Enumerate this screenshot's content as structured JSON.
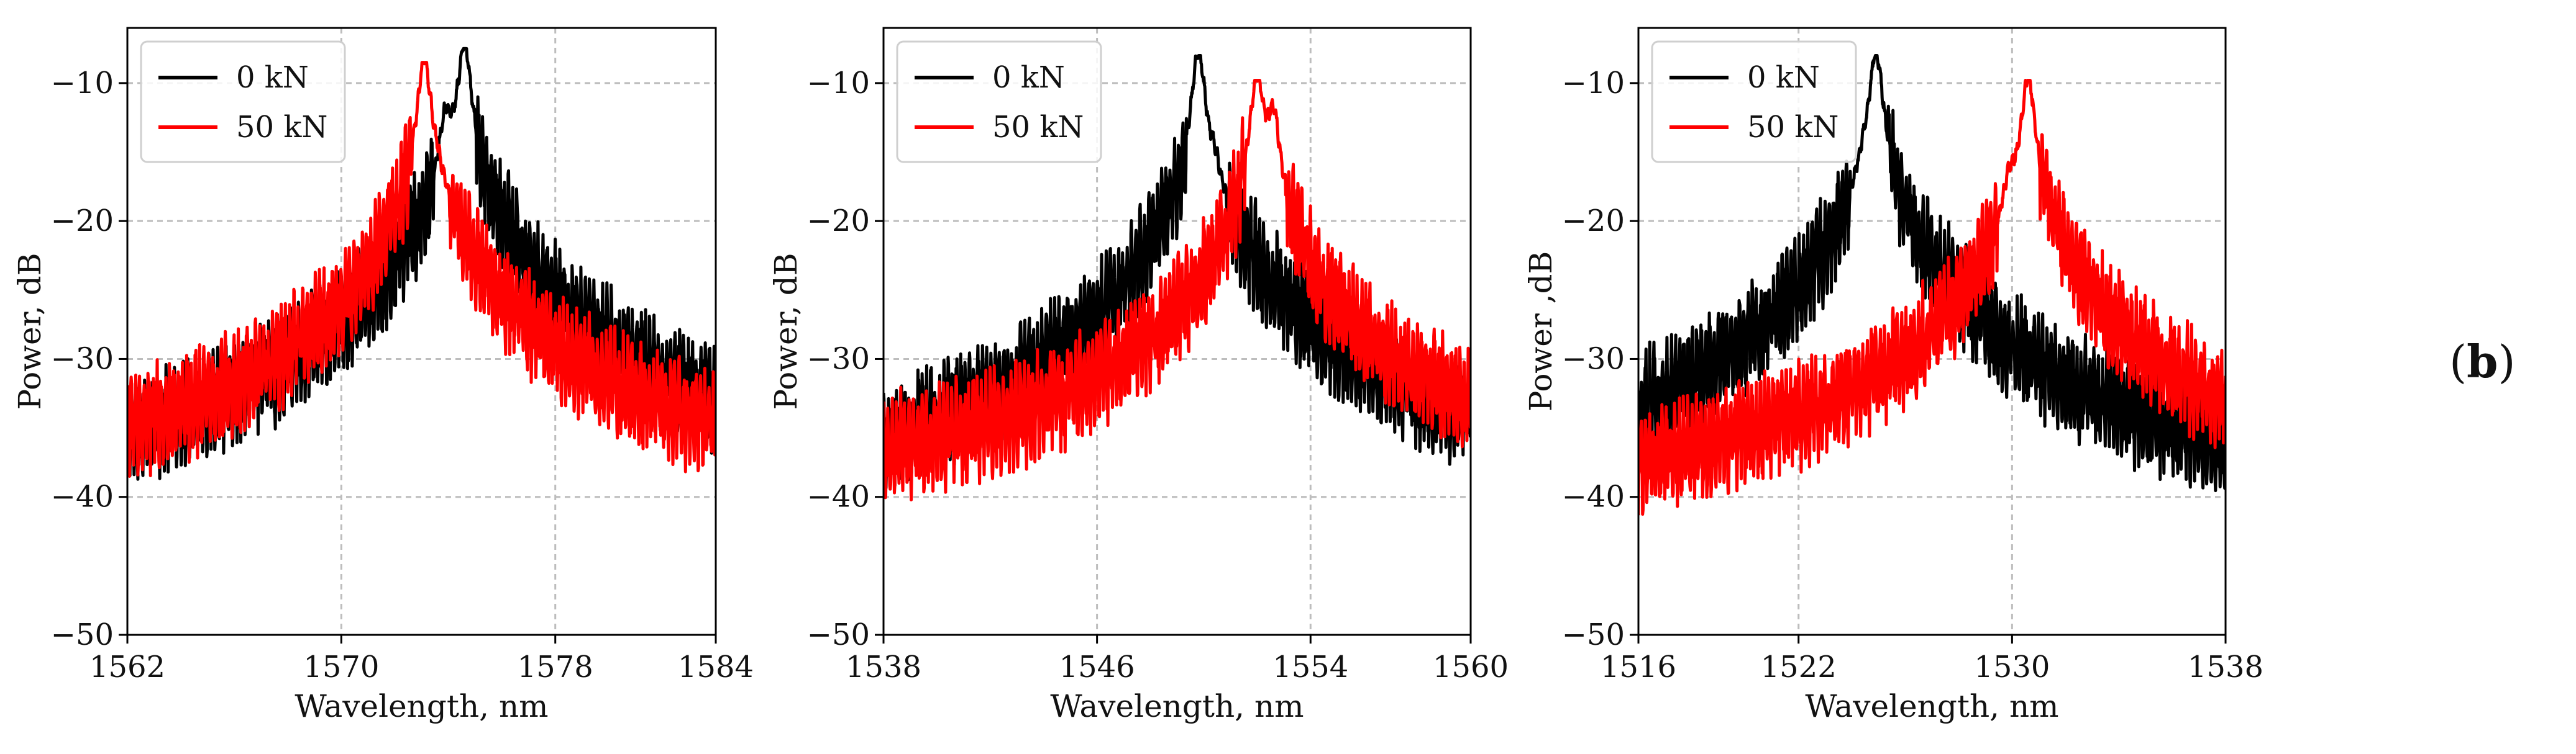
{
  "figure": {
    "panel_label_prefix": "(",
    "panel_label_letter": "b",
    "panel_label_suffix": ")"
  },
  "chart_data": [
    {
      "type": "line",
      "title": "",
      "xlabel": "Wavelength, nm",
      "ylabel": "Power, dB",
      "xlim": [
        1562,
        1584
      ],
      "ylim": [
        -50,
        -6
      ],
      "xticks": [
        1562,
        1570,
        1578,
        1584
      ],
      "yticks": [
        -50,
        -40,
        -30,
        -20,
        -10
      ],
      "grid": true,
      "legend_position": "top-left",
      "series": [
        {
          "name": "0 kN",
          "color": "#000000",
          "peak_x": 1574.6,
          "peak_y": -7.5,
          "shoulder_x": 1573.9,
          "shoulder_y": -13.8,
          "floor_left": -43,
          "floor_right": -40.5
        },
        {
          "name": "50 kN",
          "color": "#ff0000",
          "peak_x": 1573.1,
          "peak_y": -8.5,
          "shoulder_x": 1573.6,
          "shoulder_y": -23.0,
          "floor_left": -40.5,
          "floor_right": -40.0
        }
      ]
    },
    {
      "type": "line",
      "title": "",
      "xlabel": "Wavelength, nm",
      "ylabel": "Power, dB",
      "xlim": [
        1538,
        1560
      ],
      "ylim": [
        -50,
        -6
      ],
      "xticks": [
        1538,
        1546,
        1554,
        1560
      ],
      "yticks": [
        -50,
        -40,
        -30,
        -20,
        -10
      ],
      "grid": true,
      "legend_position": "top-left",
      "series": [
        {
          "name": "0 kN",
          "color": "#000000",
          "peak_x": 1549.8,
          "peak_y": -8.0,
          "shoulder_x": 1550.4,
          "shoulder_y": -20.5,
          "floor_left": -44.5,
          "floor_right": -41.0
        },
        {
          "name": "50 kN",
          "color": "#ff0000",
          "peak_x": 1552.0,
          "peak_y": -9.8,
          "shoulder_x": 1552.6,
          "shoulder_y": -13.0,
          "floor_left": -40.0,
          "floor_right": -38.5
        }
      ]
    },
    {
      "type": "line",
      "title": "",
      "xlabel": "Wavelength, nm",
      "ylabel": "Power ,dB",
      "xlim": [
        1516,
        1538
      ],
      "ylim": [
        -50,
        -6
      ],
      "xticks": [
        1516,
        1522,
        1530,
        1538
      ],
      "yticks": [
        -50,
        -40,
        -30,
        -20,
        -10
      ],
      "grid": true,
      "legend_position": "top-left",
      "series": [
        {
          "name": "0 kN",
          "color": "#000000",
          "peak_x": 1524.9,
          "peak_y": -8.0,
          "shoulder_x": 1524.4,
          "shoulder_y": -22.0,
          "floor_left": -43.0,
          "floor_right": -42.5
        },
        {
          "name": "50 kN",
          "color": "#ff0000",
          "peak_x": 1530.6,
          "peak_y": -9.8,
          "shoulder_x": 1529.9,
          "shoulder_y": -20.0,
          "floor_left": -41.0,
          "floor_right": -39.0
        }
      ]
    }
  ]
}
